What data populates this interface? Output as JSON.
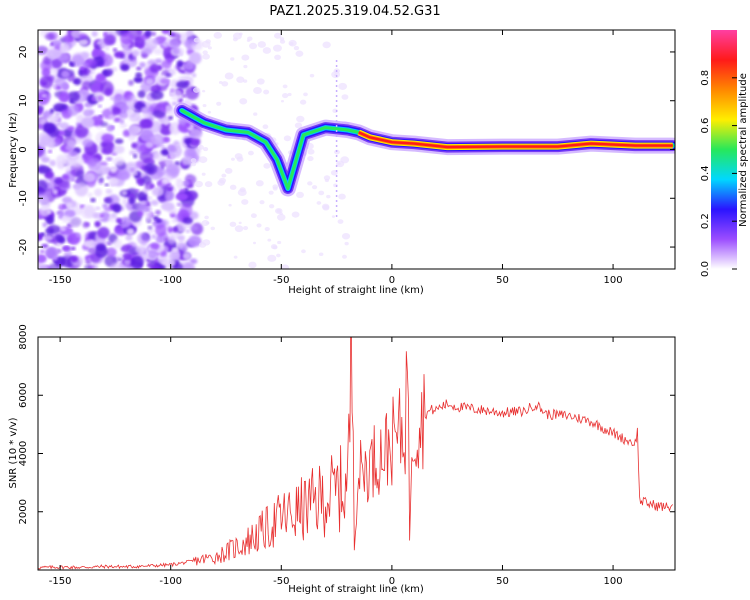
{
  "title": "PAZ1.2025.319.04.52.G31",
  "chart_data": [
    {
      "type": "heatmap",
      "xlabel": "Height of straight line (km)",
      "ylabel": "Frequency (Hz)",
      "xlim": [
        -160,
        128
      ],
      "ylim": [
        -24.5,
        24.5
      ],
      "xticks": [
        -150,
        -100,
        -50,
        0,
        50,
        100
      ],
      "yticks": [
        -20,
        -10,
        0,
        10,
        20
      ],
      "colorbar": {
        "label": "Normalized spectral amplitude",
        "range": [
          0,
          1
        ],
        "ticks": [
          "0.0",
          "0.2",
          "0.4",
          "0.6",
          "0.8"
        ],
        "colors": [
          "#ffffff",
          "#9b4dff",
          "#2a14ff",
          "#00d8ff",
          "#27e85a",
          "#ffee00",
          "#ff8800",
          "#ff1a1a",
          "#ff3fa2"
        ]
      },
      "ridge": {
        "description": "dominant frequency track (km, Hz)",
        "points": [
          [
            -95,
            8
          ],
          [
            -85,
            5.5
          ],
          [
            -75,
            4
          ],
          [
            -65,
            3.5
          ],
          [
            -57,
            1.5
          ],
          [
            -52,
            -2
          ],
          [
            -47,
            -8
          ],
          [
            -40,
            3
          ],
          [
            -30,
            4.5
          ],
          [
            -20,
            4
          ],
          [
            -15,
            3.5
          ],
          [
            -10,
            2.5
          ],
          [
            0,
            1.5
          ],
          [
            10,
            1.2
          ],
          [
            25,
            0.5
          ],
          [
            50,
            0.6
          ],
          [
            75,
            0.6
          ],
          [
            90,
            1.2
          ],
          [
            100,
            1
          ],
          [
            110,
            0.8
          ],
          [
            127,
            0.8
          ]
        ]
      }
    },
    {
      "type": "line",
      "xlabel": "Height of straight line (km)",
      "ylabel": "SNR (10 * v/v)",
      "xlim": [
        -160,
        128
      ],
      "ylim": [
        0,
        8000
      ],
      "xticks": [
        -150,
        -100,
        -50,
        0,
        50,
        100
      ],
      "yticks": [
        2000,
        4000,
        6000,
        8000
      ],
      "series": [
        {
          "name": "SNR",
          "color": "#e83030",
          "x": [
            -160,
            -150,
            -140,
            -130,
            -120,
            -110,
            -100,
            -90,
            -80,
            -75,
            -70,
            -65,
            -60,
            -55,
            -50,
            -45,
            -40,
            -35,
            -30,
            -25,
            -20,
            -18,
            -17,
            -16,
            -15,
            -12,
            -10,
            -8,
            -5,
            -2,
            0,
            2,
            4,
            6,
            7,
            8,
            9,
            10,
            12,
            14,
            16,
            18,
            20,
            22,
            25,
            30,
            40,
            50,
            60,
            65,
            70,
            80,
            90,
            100,
            105,
            110,
            111,
            112,
            115,
            120,
            125,
            127
          ],
          "y": [
            80,
            100,
            90,
            120,
            110,
            140,
            180,
            300,
            450,
            600,
            800,
            1000,
            1250,
            1500,
            1800,
            1900,
            2100,
            2300,
            2500,
            2700,
            2900,
            8000,
            1500,
            3200,
            3300,
            3500,
            3600,
            3800,
            4000,
            4200,
            4400,
            4500,
            4700,
            4900,
            7800,
            1200,
            4800,
            4900,
            5100,
            5300,
            5400,
            5500,
            5500,
            5600,
            5700,
            5600,
            5500,
            5400,
            5450,
            5700,
            5350,
            5300,
            5100,
            4700,
            4500,
            4350,
            4800,
            2400,
            2300,
            2200,
            2150,
            2250
          ]
        }
      ]
    }
  ]
}
